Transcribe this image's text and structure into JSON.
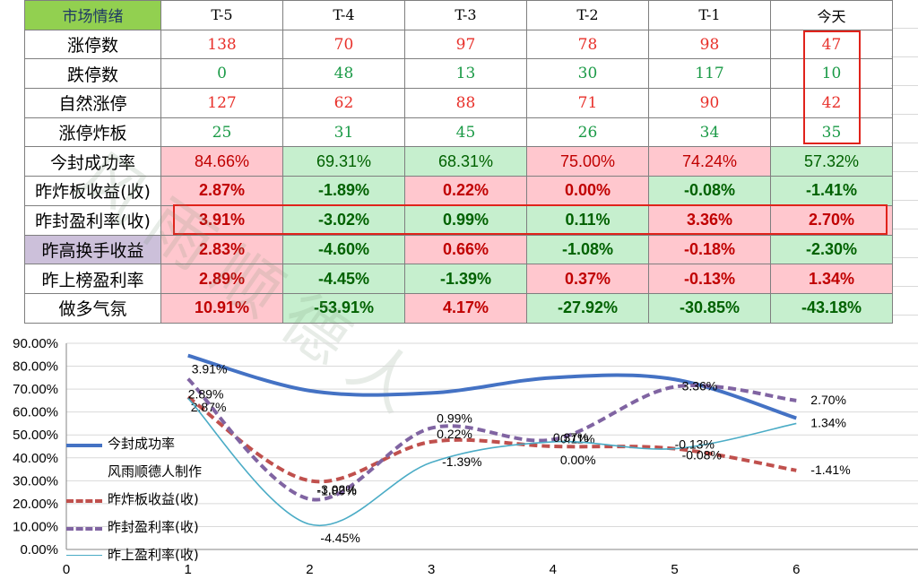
{
  "table": {
    "header": {
      "label": "市场情绪",
      "cols": [
        "T-5",
        "T-4",
        "T-3",
        "T-2",
        "T-1",
        "今天"
      ]
    },
    "rows": [
      {
        "label": "涨停数",
        "kind": "count",
        "values": [
          "138",
          "70",
          "97",
          "78",
          "98",
          "47"
        ],
        "signs": [
          "pos",
          "pos",
          "pos",
          "pos",
          "pos",
          "pos"
        ]
      },
      {
        "label": "跌停数",
        "kind": "count",
        "values": [
          "0",
          "48",
          "13",
          "30",
          "117",
          "10"
        ],
        "signs": [
          "neg",
          "neg",
          "neg",
          "neg",
          "neg",
          "neg"
        ]
      },
      {
        "label": "自然涨停",
        "kind": "count",
        "values": [
          "127",
          "62",
          "88",
          "71",
          "90",
          "42"
        ],
        "signs": [
          "pos",
          "pos",
          "pos",
          "pos",
          "pos",
          "pos"
        ]
      },
      {
        "label": "涨停炸板",
        "kind": "count",
        "values": [
          "25",
          "31",
          "45",
          "26",
          "34",
          "35"
        ],
        "signs": [
          "neg",
          "neg",
          "neg",
          "neg",
          "neg",
          "neg"
        ]
      },
      {
        "label": "今封成功率",
        "kind": "pct-plain",
        "values": [
          "84.66%",
          "69.31%",
          "68.31%",
          "75.00%",
          "74.24%",
          "57.32%"
        ],
        "signs": [
          "pos",
          "neg",
          "neg",
          "pos",
          "pos",
          "neg"
        ]
      },
      {
        "label": "昨炸板收益(收)",
        "kind": "pct",
        "values": [
          "2.87%",
          "-1.89%",
          "0.22%",
          "0.00%",
          "-0.08%",
          "-1.41%"
        ],
        "signs": [
          "pos",
          "neg",
          "pos",
          "pos",
          "neg",
          "neg"
        ]
      },
      {
        "label": "昨封盈利率(收)",
        "kind": "pct",
        "values": [
          "3.91%",
          "-3.02%",
          "0.99%",
          "0.11%",
          "3.36%",
          "2.70%"
        ],
        "signs": [
          "pos",
          "neg",
          "neg",
          "neg",
          "pos",
          "pos"
        ]
      },
      {
        "label": "昨高换手收益",
        "kind": "pct",
        "values": [
          "2.83%",
          "-4.60%",
          "0.66%",
          "-1.08%",
          "-0.18%",
          "-2.30%"
        ],
        "signs": [
          "pos",
          "neg",
          "pos",
          "neg",
          "pos",
          "neg"
        ],
        "label_bg": "#ccc0da"
      },
      {
        "label": "昨上榜盈利率",
        "kind": "pct",
        "values": [
          "2.89%",
          "-4.45%",
          "-1.39%",
          "0.37%",
          "-0.13%",
          "1.34%"
        ],
        "signs": [
          "pos",
          "neg",
          "neg",
          "pos",
          "pos",
          "pos"
        ]
      },
      {
        "label": "做多气氛",
        "kind": "pct",
        "values": [
          "10.91%",
          "-53.91%",
          "4.17%",
          "-27.92%",
          "-30.85%",
          "-43.18%"
        ],
        "signs": [
          "pos",
          "neg",
          "pos",
          "neg",
          "neg",
          "neg"
        ]
      }
    ],
    "colors": {
      "pos_text": "#c00000",
      "neg_text": "#006100",
      "pos_bg": "#ffc7ce",
      "neg_bg": "#c6efce",
      "header_bg": "#92d050",
      "highlight": "#e0231b"
    }
  },
  "watermark": "风雨顺德人",
  "chart_data": {
    "type": "line",
    "x": [
      1,
      2,
      3,
      4,
      5,
      6
    ],
    "xlim": [
      0,
      7
    ],
    "ylim": [
      0,
      90
    ],
    "y_unit": "%",
    "y_ticks": [
      "0.00%",
      "10.00%",
      "20.00%",
      "30.00%",
      "40.00%",
      "50.00%",
      "60.00%",
      "70.00%",
      "80.00%",
      "90.00%"
    ],
    "x_ticks": [
      "0",
      "1",
      "2",
      "3",
      "4",
      "5",
      "6"
    ],
    "legend_position": "left-middle",
    "legend_extra_text": "风雨顺德人制作",
    "series": [
      {
        "name": "今封成功率",
        "color": "#4472c4",
        "style": "solid-thick",
        "values": [
          84.66,
          69.31,
          68.31,
          75.0,
          74.24,
          57.32
        ],
        "labels": null
      },
      {
        "name": "昨炸板收益(收)",
        "color": "#c0504d",
        "style": "dashed",
        "values": [
          66.5,
          30.0,
          47.0,
          45.0,
          44.0,
          34.5
        ],
        "labels": [
          "2.87%",
          "-1.89%",
          "0.22%",
          "0.00%",
          "-0.08%",
          "-1.41%"
        ]
      },
      {
        "name": "昨封盈利率(收)",
        "color": "#8064a2",
        "style": "dashed",
        "values": [
          74.5,
          22.0,
          53.0,
          48.0,
          71.0,
          65.0
        ],
        "labels": [
          "3.91%",
          "-3.02%",
          "0.99%",
          "0.11%",
          "3.36%",
          "2.70%"
        ]
      },
      {
        "name": "昨上盈利率(收)",
        "color": "#4bacc6",
        "style": "solid-thin",
        "values": [
          66.0,
          11.0,
          38.0,
          47.0,
          44.0,
          55.0
        ],
        "labels": [
          "2.89%",
          "-4.45%",
          "-1.39%",
          "0.37%",
          "-0.13%",
          "1.34%"
        ]
      }
    ]
  }
}
